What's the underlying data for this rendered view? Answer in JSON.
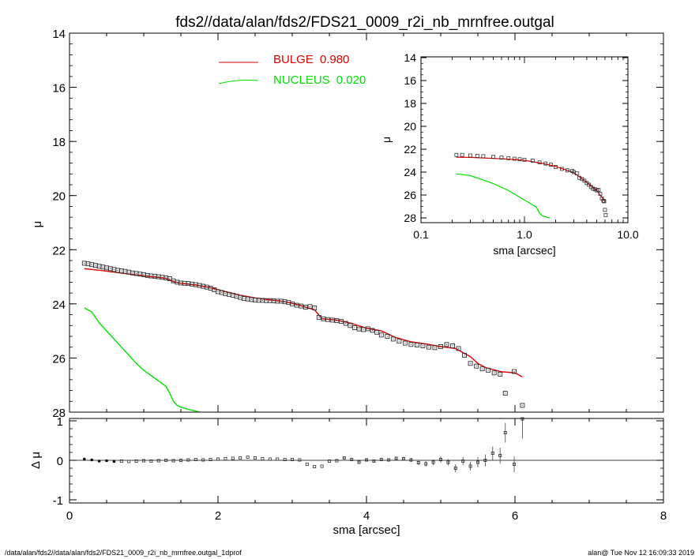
{
  "title": "fds2//data/alan/fds2/FDS21_0009_r2i_nb_mrnfree.outgal",
  "footer_left": "/data/alan/fds2//data/alan/fds2/FDS21_0009_r2i_nb_mrnfree.outgal_1dprof",
  "footer_right": "alan@  Tue Nov 12 16:09:33 2019",
  "chart_data": [
    {
      "type": "scatter",
      "panel": "main profile",
      "xlabel": "sma [arcsec]",
      "ylabel": "μ",
      "xlim": [
        0,
        8
      ],
      "ylim": [
        28,
        14
      ],
      "x_ticks": [
        "0",
        "2",
        "4",
        "6",
        "8"
      ],
      "y_ticks": [
        "14",
        "16",
        "18",
        "20",
        "22",
        "24",
        "26",
        "28"
      ],
      "legend": [
        {
          "label": "BULGE",
          "value": "0.980",
          "color": "#e00000"
        },
        {
          "label": "NUCLEUS",
          "value": "0.020",
          "color": "#00e000"
        }
      ],
      "legend_position": "top-center",
      "series": [
        {
          "kind": "data-points",
          "marker": "open-square",
          "color": "#000000",
          "x": [
            0.2,
            0.25,
            0.3,
            0.35,
            0.4,
            0.45,
            0.5,
            0.55,
            0.6,
            0.65,
            0.7,
            0.75,
            0.8,
            0.85,
            0.9,
            0.95,
            1.0,
            1.05,
            1.1,
            1.15,
            1.2,
            1.25,
            1.3,
            1.35,
            1.4,
            1.45,
            1.5,
            1.55,
            1.6,
            1.65,
            1.7,
            1.75,
            1.8,
            1.85,
            1.9,
            1.95,
            2.0,
            2.05,
            2.1,
            2.15,
            2.2,
            2.25,
            2.3,
            2.35,
            2.4,
            2.45,
            2.5,
            2.55,
            2.6,
            2.65,
            2.7,
            2.75,
            2.8,
            2.85,
            2.9,
            2.95,
            3.0,
            3.06,
            3.12,
            3.18,
            3.24,
            3.3,
            3.36,
            3.42,
            3.48,
            3.54,
            3.6,
            3.66,
            3.72,
            3.78,
            3.84,
            3.9,
            3.96,
            4.02,
            4.08,
            4.14,
            4.2,
            4.28,
            4.36,
            4.44,
            4.52,
            4.6,
            4.68,
            4.76,
            4.84,
            4.92,
            5.0,
            5.08,
            5.16,
            5.24,
            5.32,
            5.4,
            5.48,
            5.56,
            5.64,
            5.72,
            5.8,
            5.87,
            5.99,
            6.1
          ],
          "y": [
            22.5,
            22.52,
            22.55,
            22.58,
            22.61,
            22.64,
            22.67,
            22.7,
            22.73,
            22.76,
            22.78,
            22.8,
            22.83,
            22.86,
            22.88,
            22.9,
            22.92,
            22.95,
            22.97,
            22.98,
            23.0,
            23.02,
            23.04,
            23.07,
            23.15,
            23.2,
            23.23,
            23.24,
            23.25,
            23.27,
            23.29,
            23.32,
            23.35,
            23.38,
            23.42,
            23.48,
            23.55,
            23.58,
            23.62,
            23.65,
            23.68,
            23.72,
            23.76,
            23.8,
            23.82,
            23.84,
            23.86,
            23.87,
            23.87,
            23.88,
            23.88,
            23.89,
            23.9,
            23.9,
            23.92,
            23.95,
            24.0,
            24.05,
            24.08,
            24.12,
            24.1,
            24.15,
            24.5,
            24.55,
            24.58,
            24.6,
            24.62,
            24.65,
            24.72,
            24.8,
            24.88,
            24.93,
            24.95,
            24.92,
            24.98,
            25.05,
            25.15,
            25.2,
            25.3,
            25.38,
            25.45,
            25.5,
            25.52,
            25.55,
            25.6,
            25.62,
            25.58,
            25.5,
            25.55,
            25.65,
            25.9,
            26.2,
            26.3,
            26.4,
            26.45,
            26.55,
            26.6,
            27.3,
            26.5,
            27.75
          ]
        },
        {
          "kind": "model",
          "name": "BULGE",
          "color": "#e00000",
          "x": [
            0.2,
            0.4,
            0.6,
            0.8,
            1.0,
            1.2,
            1.3,
            1.35,
            1.4,
            1.5,
            1.7,
            1.9,
            2.1,
            2.3,
            2.5,
            2.7,
            2.9,
            3.1,
            3.3,
            3.4,
            3.6,
            3.8,
            4.0,
            4.2,
            4.4,
            4.6,
            4.8,
            5.0,
            5.2,
            5.4,
            5.5,
            5.6,
            5.8,
            6.0,
            6.1
          ],
          "y": [
            22.7,
            22.76,
            22.83,
            22.9,
            22.97,
            23.02,
            23.06,
            23.12,
            23.18,
            23.24,
            23.3,
            23.4,
            23.55,
            23.68,
            23.78,
            23.85,
            23.92,
            24.05,
            24.22,
            24.55,
            24.6,
            24.72,
            24.9,
            25.0,
            25.25,
            25.4,
            25.48,
            25.58,
            25.65,
            25.95,
            26.2,
            26.35,
            26.5,
            26.55,
            26.7
          ]
        },
        {
          "kind": "model",
          "name": "NUCLEUS",
          "color": "#00e000",
          "x": [
            0.2,
            0.3,
            0.4,
            0.5,
            0.6,
            0.7,
            0.8,
            0.9,
            1.0,
            1.1,
            1.2,
            1.3,
            1.35,
            1.4,
            1.45,
            1.5,
            1.6,
            1.7,
            1.75
          ],
          "y": [
            24.15,
            24.3,
            24.7,
            25.0,
            25.3,
            25.6,
            25.9,
            26.2,
            26.45,
            26.65,
            26.85,
            27.05,
            27.3,
            27.6,
            27.75,
            27.82,
            27.9,
            27.96,
            28.0
          ]
        }
      ]
    },
    {
      "type": "scatter",
      "panel": "residuals",
      "xlabel": "sma [arcsec]",
      "ylabel": "Δ μ",
      "xlim": [
        0,
        8
      ],
      "ylim": [
        -1,
        1
      ],
      "y_ticks": [
        "1",
        "0",
        "-1"
      ],
      "reference_line_y": 0,
      "series": [
        {
          "kind": "residual-points",
          "color": "#000000",
          "x": [
            0.2,
            0.3,
            0.4,
            0.5,
            0.6,
            0.7,
            0.8,
            0.9,
            1.0,
            1.1,
            1.2,
            1.3,
            1.4,
            1.5,
            1.6,
            1.7,
            1.8,
            1.9,
            2.0,
            2.1,
            2.2,
            2.3,
            2.4,
            2.5,
            2.6,
            2.7,
            2.8,
            2.9,
            3.0,
            3.1,
            3.2,
            3.3,
            3.4,
            3.5,
            3.6,
            3.7,
            3.8,
            3.9,
            4.0,
            4.1,
            4.2,
            4.3,
            4.4,
            4.5,
            4.6,
            4.7,
            4.8,
            4.9,
            5.0,
            5.1,
            5.2,
            5.3,
            5.4,
            5.5,
            5.6,
            5.7,
            5.8,
            5.87,
            5.99,
            6.1
          ],
          "y": [
            0.03,
            0.01,
            -0.02,
            -0.01,
            -0.03,
            -0.02,
            -0.03,
            -0.02,
            -0.01,
            -0.02,
            -0.01,
            0.0,
            -0.01,
            0.0,
            0.01,
            0.02,
            0.01,
            0.02,
            0.03,
            0.04,
            0.05,
            0.06,
            0.08,
            0.06,
            0.04,
            0.03,
            0.03,
            0.02,
            0.02,
            0.01,
            -0.1,
            -0.16,
            -0.15,
            -0.02,
            -0.01,
            0.06,
            0.02,
            -0.05,
            0.01,
            -0.02,
            0.02,
            0.01,
            0.05,
            0.04,
            0.01,
            -0.06,
            -0.09,
            -0.05,
            0.02,
            -0.05,
            -0.2,
            -0.02,
            -0.15,
            -0.05,
            0.0,
            0.18,
            0.12,
            0.7,
            -0.1,
            1.05
          ],
          "err": [
            0.01,
            0.01,
            0.01,
            0.01,
            0.01,
            0.01,
            0.01,
            0.01,
            0.01,
            0.01,
            0.01,
            0.01,
            0.01,
            0.01,
            0.01,
            0.01,
            0.01,
            0.01,
            0.01,
            0.01,
            0.01,
            0.01,
            0.01,
            0.01,
            0.01,
            0.01,
            0.01,
            0.01,
            0.01,
            0.01,
            0.02,
            0.02,
            0.02,
            0.02,
            0.02,
            0.03,
            0.03,
            0.03,
            0.03,
            0.03,
            0.04,
            0.04,
            0.04,
            0.05,
            0.05,
            0.06,
            0.07,
            0.07,
            0.08,
            0.08,
            0.1,
            0.1,
            0.11,
            0.13,
            0.15,
            0.17,
            0.2,
            0.25,
            0.2,
            0.5
          ]
        }
      ]
    },
    {
      "type": "scatter",
      "panel": "inset log-scale",
      "xlabel": "sma [arcsec]",
      "ylabel": "μ",
      "x_scale": "log",
      "xlim": [
        0.1,
        10
      ],
      "ylim": [
        28,
        14
      ],
      "x_ticks": [
        "0.1",
        "1.0",
        "10.0"
      ],
      "y_ticks": [
        "14",
        "16",
        "18",
        "20",
        "22",
        "24",
        "26",
        "28"
      ],
      "series": [
        {
          "kind": "data-points",
          "color": "#000000",
          "x": [
            0.22,
            0.25,
            0.3,
            0.35,
            0.4,
            0.5,
            0.6,
            0.7,
            0.8,
            0.9,
            1.0,
            1.2,
            1.4,
            1.6,
            1.8,
            2.0,
            2.3,
            2.6,
            2.9,
            3.0,
            3.2,
            3.4,
            3.6,
            3.8,
            4.0,
            4.2,
            4.4,
            4.6,
            4.8,
            5.0,
            5.2,
            5.4,
            5.6,
            5.8,
            5.9,
            6.0,
            6.1
          ],
          "y": [
            22.5,
            22.5,
            22.55,
            22.58,
            22.61,
            22.67,
            22.73,
            22.78,
            22.83,
            22.88,
            22.92,
            23.0,
            23.15,
            23.25,
            23.35,
            23.55,
            23.72,
            23.85,
            23.9,
            24.0,
            24.1,
            24.5,
            24.6,
            24.75,
            24.95,
            25.1,
            25.3,
            25.45,
            25.5,
            25.6,
            25.55,
            25.9,
            26.3,
            26.5,
            26.55,
            27.3,
            27.75
          ]
        },
        {
          "kind": "model",
          "name": "BULGE",
          "color": "#e00000",
          "x": [
            0.22,
            0.3,
            0.5,
            0.8,
            1.0,
            1.5,
            2.0,
            3.0,
            4.0,
            5.0,
            6.0
          ],
          "y": [
            22.7,
            22.72,
            22.8,
            22.9,
            22.97,
            23.24,
            23.5,
            24.05,
            24.9,
            25.6,
            26.55
          ]
        },
        {
          "kind": "model",
          "name": "NUCLEUS",
          "color": "#00e000",
          "x": [
            0.22,
            0.3,
            0.5,
            0.7,
            0.9,
            1.1,
            1.3,
            1.4,
            1.5,
            1.6,
            1.75
          ],
          "y": [
            24.15,
            24.3,
            25.0,
            25.6,
            26.2,
            26.65,
            27.05,
            27.6,
            27.82,
            27.9,
            28.0
          ]
        }
      ]
    }
  ]
}
